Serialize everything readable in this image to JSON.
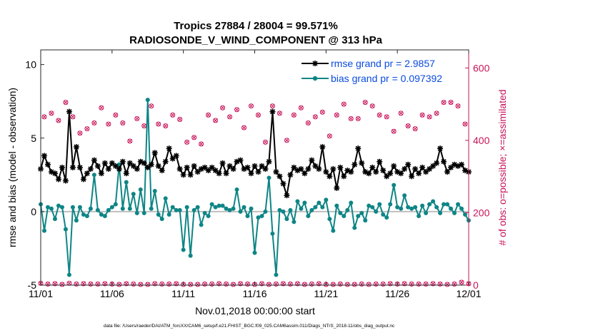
{
  "chart_data": {
    "type": "line",
    "title": "Tropics 27884 / 28004 = 99.571%",
    "subtitle": "RADIOSONDE_V_WIND_COMPONENT @ 313 hPa",
    "xlabel": "Nov.01,2018 00:00:00 start",
    "ylabel": "rmse and bias (model - observation)",
    "ylabel_right": "# of obs: o=possible; ×=assimilated",
    "footnote": "data file: /Users/raeder/DAI/ATM_forcXX/CAM6_setup/f.e21.FHIST_BGC.f09_025.CAM6assim.011/Diags_NTrS_2018-11/obs_diag_output.nc",
    "xlim": [
      0,
      30
    ],
    "ylim": [
      -5,
      11
    ],
    "ylim_right": [
      0,
      650
    ],
    "xticks": [
      0,
      5,
      10,
      15,
      20,
      25,
      30
    ],
    "xtick_labels": [
      "11/01",
      "11/06",
      "11/11",
      "11/16",
      "11/21",
      "11/26",
      "12/01"
    ],
    "yticks": [
      -5,
      0,
      5,
      10
    ],
    "ytick_labels": [
      "-5",
      "0",
      "5",
      "10"
    ],
    "yticks_right": [
      0,
      200,
      400,
      600
    ],
    "ytick_labels_right": [
      "0",
      "200",
      "400",
      "600"
    ],
    "legend": [
      "rmse grand pr = 2.9857",
      "bias grand pr = 0.097392"
    ],
    "series": [
      {
        "name": "rmse",
        "color": "#000000",
        "x": [
          0.0,
          0.25,
          0.5,
          0.75,
          1.0,
          1.25,
          1.5,
          1.75,
          2.0,
          2.25,
          2.5,
          2.75,
          3.0,
          3.25,
          3.5,
          3.75,
          4.0,
          4.25,
          4.5,
          4.75,
          5.0,
          5.25,
          5.5,
          5.75,
          6.0,
          6.25,
          6.5,
          6.75,
          7.0,
          7.25,
          7.5,
          7.75,
          8.0,
          8.25,
          8.5,
          8.75,
          9.0,
          9.25,
          9.5,
          9.75,
          10.0,
          10.25,
          10.5,
          10.75,
          11.0,
          11.25,
          11.5,
          11.75,
          12.0,
          12.25,
          12.5,
          12.75,
          13.0,
          13.25,
          13.5,
          13.75,
          14.0,
          14.25,
          14.5,
          14.75,
          15.0,
          15.25,
          15.5,
          15.75,
          16.0,
          16.25,
          16.5,
          16.75,
          17.0,
          17.25,
          17.5,
          17.75,
          18.0,
          18.25,
          18.5,
          18.75,
          19.0,
          19.25,
          19.5,
          19.75,
          20.0,
          20.25,
          20.5,
          20.75,
          21.0,
          21.25,
          21.5,
          21.75,
          22.0,
          22.25,
          22.5,
          22.75,
          23.0,
          23.25,
          23.5,
          23.75,
          24.0,
          24.25,
          24.5,
          24.75,
          25.0,
          25.25,
          25.5,
          25.75,
          26.0,
          26.25,
          26.5,
          26.75,
          27.0,
          27.25,
          27.5,
          27.75,
          28.0,
          28.25,
          28.5,
          28.75,
          29.0,
          29.25,
          29.5,
          29.75,
          30.0
        ],
        "values": [
          2.9,
          3.8,
          3.2,
          2.7,
          2.6,
          2.2,
          3.0,
          2.1,
          6.8,
          3.0,
          4.4,
          3.0,
          2.2,
          2.6,
          2.9,
          3.5,
          3.1,
          2.6,
          3.3,
          2.9,
          3.3,
          3.1,
          2.9,
          3.4,
          2.6,
          3.3,
          3.1,
          2.9,
          3.4,
          3.3,
          3.0,
          3.2,
          4.0,
          3.1,
          2.8,
          3.4,
          4.3,
          3.6,
          3.8,
          2.9,
          2.5,
          3.0,
          2.5,
          3.1,
          2.7,
          2.9,
          3.0,
          2.8,
          3.0,
          2.8,
          2.6,
          3.3,
          2.6,
          3.1,
          2.9,
          3.4,
          3.5,
          2.9,
          3.0,
          2.6,
          3.1,
          2.7,
          3.1,
          2.9,
          3.4,
          6.8,
          2.7,
          2.4,
          1.9,
          1.1,
          2.5,
          3.0,
          2.8,
          2.9,
          2.6,
          2.9,
          3.5,
          3.1,
          2.9,
          4.4,
          2.7,
          2.4,
          2.9,
          1.6,
          3.0,
          2.4,
          2.8,
          2.7,
          3.2,
          4.3,
          3.3,
          2.7,
          2.6,
          3.0,
          2.7,
          3.4,
          2.8,
          2.4,
          2.6,
          3.1,
          2.7,
          2.6,
          2.9,
          3.2,
          2.4,
          2.9,
          2.6,
          3.0,
          2.7,
          2.9,
          3.1,
          3.3,
          4.3,
          3.4,
          2.7,
          3.0,
          3.2,
          3.1,
          3.2,
          2.8,
          2.7
        ],
        "marker": "asterisk"
      },
      {
        "name": "bias",
        "color": "#0e8585",
        "x": [
          0.0,
          0.25,
          0.5,
          0.75,
          1.0,
          1.25,
          1.5,
          1.75,
          2.0,
          2.25,
          2.5,
          2.75,
          3.0,
          3.25,
          3.5,
          3.75,
          4.0,
          4.25,
          4.5,
          4.75,
          5.0,
          5.25,
          5.5,
          5.75,
          6.0,
          6.25,
          6.5,
          6.75,
          7.0,
          7.25,
          7.5,
          7.75,
          8.0,
          8.25,
          8.5,
          8.75,
          9.0,
          9.25,
          9.5,
          9.75,
          10.0,
          10.25,
          10.5,
          10.75,
          11.0,
          11.25,
          11.5,
          11.75,
          12.0,
          12.25,
          12.5,
          12.75,
          13.0,
          13.25,
          13.5,
          13.75,
          14.0,
          14.25,
          14.5,
          14.75,
          15.0,
          15.25,
          15.5,
          15.75,
          16.0,
          16.25,
          16.5,
          16.75,
          17.0,
          17.25,
          17.5,
          17.75,
          18.0,
          18.25,
          18.5,
          18.75,
          19.0,
          19.25,
          19.5,
          19.75,
          20.0,
          20.25,
          20.5,
          20.75,
          21.0,
          21.25,
          21.5,
          21.75,
          22.0,
          22.25,
          22.5,
          22.75,
          23.0,
          23.25,
          23.5,
          23.75,
          24.0,
          24.25,
          24.5,
          24.75,
          25.0,
          25.25,
          25.5,
          25.75,
          26.0,
          26.25,
          26.5,
          26.75,
          27.0,
          27.25,
          27.5,
          27.75,
          28.0,
          28.25,
          28.5,
          28.75,
          29.0,
          29.25,
          29.5,
          29.75,
          30.0
        ],
        "values": [
          0.5,
          -1.3,
          0.3,
          0.2,
          -0.5,
          0.4,
          0.3,
          -1.2,
          -4.3,
          0.3,
          -0.6,
          0.3,
          -0.2,
          -0.3,
          0.2,
          2.5,
          0.1,
          -0.2,
          -0.3,
          0.1,
          0.3,
          0.5,
          3.2,
          0.2,
          2.0,
          0.2,
          1.2,
          -0.1,
          1.5,
          -0.1,
          7.6,
          0.2,
          1.4,
          -0.2,
          -0.5,
          0.9,
          -0.2,
          0.3,
          0.1,
          0.1,
          -2.6,
          0.3,
          -3.0,
          0.1,
          0.3,
          -0.9,
          -0.1,
          -0.3,
          0.5,
          0.3,
          0.4,
          0.4,
          0.2,
          0.1,
          0.2,
          1.5,
          0.0,
          0.3,
          -0.3,
          0.2,
          -2.8,
          -0.4,
          -0.3,
          0.0,
          2.3,
          -1.5,
          -4.3,
          0.1,
          0.0,
          -0.5,
          0.1,
          -0.7,
          0.7,
          0.2,
          0.6,
          -0.3,
          0.1,
          0.3,
          0.6,
          0.3,
          0.8,
          -0.5,
          -1.3,
          0.4,
          -0.1,
          -0.3,
          0.1,
          0.6,
          -1.1,
          -0.3,
          -0.1,
          -0.6,
          0.4,
          0.3,
          0.0,
          0.5,
          -0.2,
          -0.4,
          0.5,
          1.8,
          0.3,
          0.2,
          1.1,
          0.3,
          0.2,
          0.3,
          -0.3,
          0.4,
          -0.1,
          0.5,
          0.7,
          0.3,
          -0.1,
          0.5,
          0.5,
          0.2,
          -0.1,
          0.5,
          0.2,
          -0.2,
          -0.6
        ],
        "marker": "circle"
      },
      {
        "name": "obs possible / assimilated",
        "color": "#c8145a",
        "axis": "right",
        "x": [
          0.0,
          0.25,
          0.5,
          0.75,
          1.0,
          1.25,
          1.5,
          1.75,
          2.0,
          2.25,
          2.5,
          2.75,
          3.0,
          3.25,
          3.5,
          3.75,
          4.0,
          4.25,
          4.5,
          4.75,
          5.0,
          5.25,
          5.5,
          5.75,
          6.0,
          6.25,
          6.5,
          6.75,
          7.0,
          7.25,
          7.5,
          7.75,
          8.0,
          8.25,
          8.5,
          8.75,
          9.0,
          9.25,
          9.5,
          9.75,
          10.0,
          10.25,
          10.5,
          10.75,
          11.0,
          11.25,
          11.5,
          11.75,
          12.0,
          12.25,
          12.5,
          12.75,
          13.0,
          13.25,
          13.5,
          13.75,
          14.0,
          14.25,
          14.5,
          14.75,
          15.0,
          15.25,
          15.5,
          15.75,
          16.0,
          16.25,
          16.5,
          16.75,
          17.0,
          17.25,
          17.5,
          17.75,
          18.0,
          18.25,
          18.5,
          18.75,
          19.0,
          19.25,
          19.5,
          19.75,
          20.0,
          20.25,
          20.5,
          20.75,
          21.0,
          21.25,
          21.5,
          21.75,
          22.0,
          22.25,
          22.5,
          22.75,
          23.0,
          23.25,
          23.5,
          23.75,
          24.0,
          24.25,
          24.5,
          24.75,
          25.0,
          25.25,
          25.5,
          25.75,
          26.0,
          26.25,
          26.5,
          26.75,
          27.0,
          27.25,
          27.5,
          27.75,
          28.0,
          28.25,
          28.5,
          28.75,
          29.0,
          29.25,
          29.5,
          29.75,
          30.0
        ],
        "values": [
          5,
          465,
          3,
          475,
          4,
          455,
          2,
          505,
          5,
          465,
          3,
          420,
          4,
          432,
          3,
          448,
          3,
          490,
          4,
          445,
          3,
          470,
          2,
          448,
          4,
          398,
          3,
          460,
          2,
          440,
          2,
          495,
          4,
          445,
          3,
          440,
          3,
          470,
          4,
          458,
          2,
          395,
          2,
          408,
          2,
          390,
          3,
          470,
          3,
          455,
          4,
          490,
          3,
          465,
          2,
          485,
          4,
          435,
          3,
          495,
          2,
          470,
          4,
          395,
          2,
          495,
          3,
          475,
          4,
          400,
          3,
          470,
          4,
          490,
          2,
          448,
          3,
          465,
          4,
          478,
          2,
          412,
          2,
          470,
          3,
          500,
          2,
          460,
          2,
          460,
          3,
          505,
          2,
          495,
          3,
          470,
          3,
          465,
          4,
          425,
          3,
          475,
          4,
          440,
          3,
          432,
          3,
          470,
          3,
          465,
          4,
          475,
          3,
          505,
          2,
          505,
          3,
          495,
          8,
          445,
          4
        ]
      }
    ]
  }
}
